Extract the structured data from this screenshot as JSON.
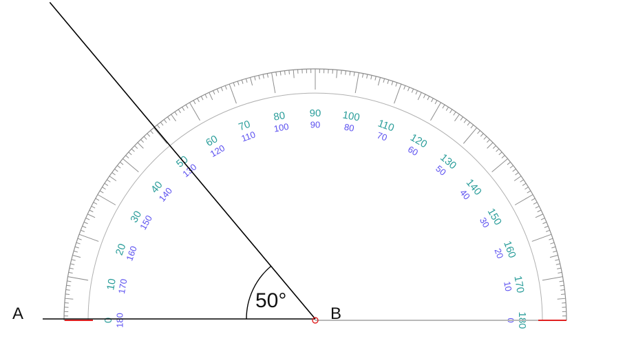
{
  "points": {
    "a_label": "A",
    "b_label": "B"
  },
  "angle": {
    "value_deg": 50,
    "label": "50°"
  },
  "protractor": {
    "outer_scale": [
      "0",
      "10",
      "20",
      "30",
      "40",
      "50",
      "60",
      "70",
      "80",
      "90",
      "100",
      "110",
      "120",
      "130",
      "140",
      "150",
      "160",
      "170",
      "180"
    ],
    "inner_scale": [
      "180",
      "170",
      "160",
      "150",
      "140",
      "130",
      "120",
      "110",
      "100",
      "90",
      "80",
      "70",
      "60",
      "50",
      "40",
      "30",
      "20",
      "10",
      "0"
    ]
  },
  "colors": {
    "outer_scale": "#2a9d9a",
    "inner_scale": "#5a4ff0",
    "tick": "#8c8c8c",
    "baseline_marker": "#e02020",
    "rays": "#000000"
  }
}
